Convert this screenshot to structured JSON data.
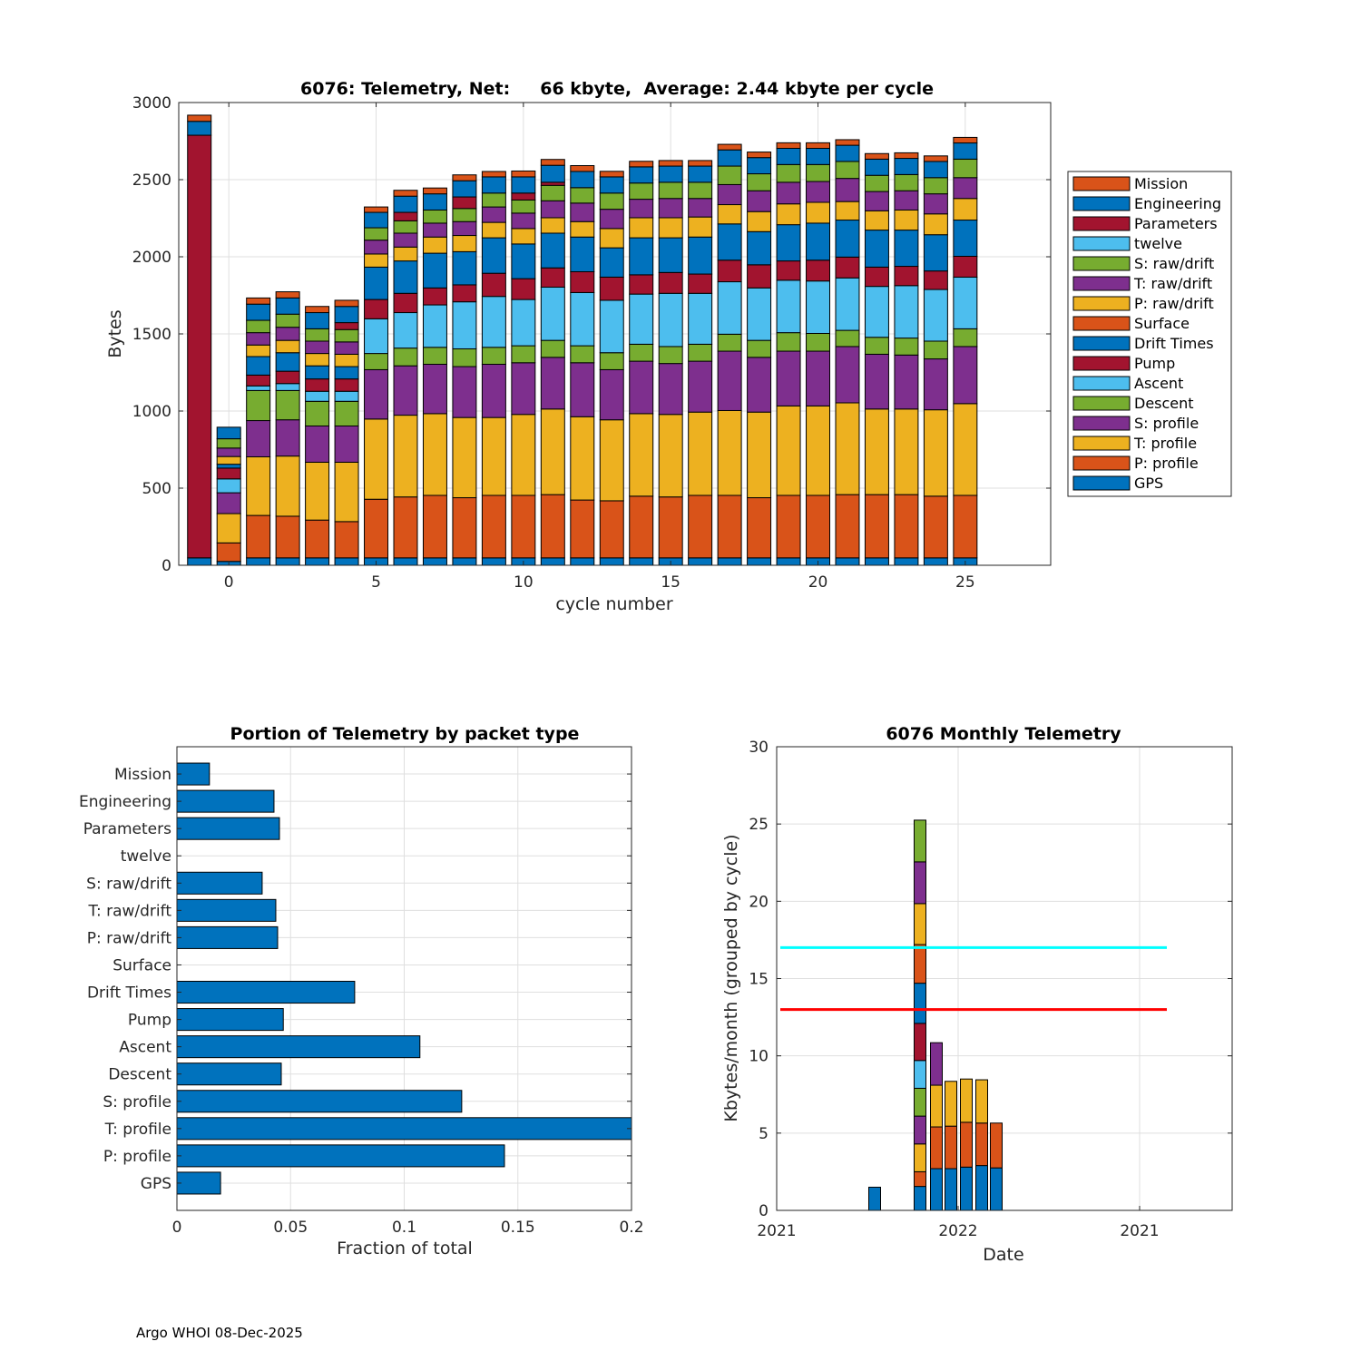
{
  "chart_data": [
    {
      "type": "bar",
      "stacked": true,
      "title": "6076: Telemetry, Net:     66 kbyte,  Average: 2.44 kbyte per cycle",
      "xlabel": "cycle number",
      "ylabel": "Bytes",
      "xlim": [
        -1.7,
        27.9
      ],
      "ylim": [
        0,
        3000
      ],
      "xticks": [
        0,
        5,
        10,
        15,
        20,
        25
      ],
      "yticks": [
        0,
        500,
        1000,
        1500,
        2000,
        2500,
        3000
      ],
      "grid": true,
      "legend_position": "outside-right",
      "categories": [
        -1,
        0,
        1,
        2,
        3,
        4,
        5,
        6,
        7,
        8,
        9,
        10,
        11,
        12,
        13,
        14,
        15,
        16,
        17,
        18,
        19,
        20,
        21,
        22,
        23,
        24,
        25
      ],
      "series": [
        {
          "name": "GPS",
          "color": "#0072BD",
          "values": [
            48,
            25,
            48,
            48,
            48,
            48,
            48,
            48,
            48,
            48,
            48,
            48,
            48,
            48,
            48,
            48,
            48,
            48,
            48,
            48,
            48,
            48,
            48,
            48,
            48,
            48,
            48
          ]
        },
        {
          "name": "P: profile",
          "color": "#D95319",
          "values": [
            0,
            120,
            275,
            270,
            245,
            235,
            380,
            395,
            405,
            390,
            405,
            405,
            410,
            375,
            370,
            400,
            395,
            405,
            405,
            390,
            405,
            405,
            410,
            410,
            410,
            400,
            405
          ]
        },
        {
          "name": "T: profile",
          "color": "#EDB120",
          "values": [
            0,
            190,
            380,
            390,
            375,
            385,
            520,
            530,
            530,
            520,
            505,
            525,
            555,
            540,
            525,
            535,
            535,
            540,
            550,
            555,
            580,
            580,
            595,
            555,
            555,
            560,
            595
          ]
        },
        {
          "name": "S: profile",
          "color": "#7E2F8E",
          "values": [
            0,
            135,
            235,
            235,
            235,
            235,
            320,
            320,
            320,
            330,
            345,
            335,
            335,
            350,
            325,
            340,
            330,
            330,
            385,
            355,
            355,
            355,
            365,
            355,
            350,
            330,
            370
          ]
        },
        {
          "name": "Descent",
          "color": "#77AC30",
          "values": [
            0,
            0,
            195,
            190,
            160,
            160,
            105,
            115,
            110,
            115,
            110,
            110,
            110,
            110,
            110,
            110,
            110,
            110,
            110,
            110,
            120,
            115,
            105,
            110,
            110,
            115,
            115
          ]
        },
        {
          "name": "Ascent",
          "color": "#4DBEEE",
          "values": [
            0,
            90,
            30,
            45,
            65,
            65,
            225,
            230,
            275,
            305,
            330,
            300,
            345,
            345,
            340,
            325,
            345,
            330,
            340,
            340,
            340,
            340,
            340,
            330,
            340,
            335,
            335
          ]
        },
        {
          "name": "Pump",
          "color": "#A2142F",
          "values": [
            0,
            70,
            70,
            80,
            80,
            80,
            125,
            125,
            110,
            110,
            150,
            135,
            125,
            135,
            150,
            125,
            135,
            125,
            140,
            150,
            125,
            135,
            135,
            125,
            125,
            120,
            135
          ]
        },
        {
          "name": "Drift Times",
          "color": "#0072BD",
          "values": [
            0,
            25,
            120,
            120,
            85,
            80,
            210,
            210,
            225,
            215,
            230,
            225,
            225,
            225,
            190,
            240,
            225,
            240,
            235,
            215,
            235,
            240,
            240,
            240,
            235,
            235,
            235
          ]
        },
        {
          "name": "Surface",
          "color": "#D95319",
          "values": [
            0,
            0,
            0,
            0,
            0,
            0,
            0,
            0,
            0,
            0,
            0,
            0,
            0,
            0,
            0,
            0,
            0,
            0,
            0,
            0,
            0,
            0,
            0,
            0,
            0,
            0,
            0
          ]
        },
        {
          "name": "P: raw/drift",
          "color": "#EDB120",
          "values": [
            0,
            50,
            75,
            80,
            80,
            80,
            85,
            90,
            105,
            105,
            100,
            100,
            100,
            100,
            125,
            130,
            130,
            130,
            125,
            130,
            135,
            135,
            120,
            125,
            130,
            135,
            140
          ]
        },
        {
          "name": "T: raw/drift",
          "color": "#7E2F8E",
          "values": [
            0,
            55,
            80,
            85,
            80,
            80,
            90,
            90,
            90,
            90,
            100,
            100,
            110,
            120,
            125,
            120,
            125,
            120,
            130,
            135,
            140,
            135,
            150,
            125,
            125,
            130,
            135
          ]
        },
        {
          "name": "S: raw/drift",
          "color": "#77AC30",
          "values": [
            0,
            60,
            80,
            85,
            80,
            80,
            80,
            80,
            85,
            85,
            90,
            85,
            100,
            100,
            105,
            105,
            105,
            105,
            120,
            110,
            115,
            110,
            110,
            105,
            105,
            105,
            120
          ]
        },
        {
          "name": "twelve",
          "color": "#4DBEEE",
          "values": [
            0,
            0,
            0,
            0,
            0,
            0,
            0,
            0,
            0,
            0,
            0,
            0,
            0,
            0,
            0,
            0,
            0,
            0,
            0,
            0,
            0,
            0,
            0,
            0,
            0,
            0,
            0
          ]
        },
        {
          "name": "Parameters",
          "color": "#A2142F",
          "values": [
            2740,
            0,
            0,
            0,
            0,
            45,
            0,
            55,
            0,
            75,
            0,
            45,
            20,
            0,
            0,
            0,
            0,
            0,
            0,
            0,
            0,
            0,
            0,
            0,
            0,
            0,
            0
          ]
        },
        {
          "name": "Engineering",
          "color": "#0072BD",
          "values": [
            90,
            75,
            105,
            105,
            105,
            105,
            100,
            105,
            105,
            105,
            105,
            105,
            110,
            105,
            105,
            105,
            105,
            105,
            105,
            105,
            105,
            105,
            105,
            105,
            105,
            105,
            105
          ]
        },
        {
          "name": "Mission",
          "color": "#D95319",
          "values": [
            40,
            0,
            40,
            40,
            40,
            40,
            35,
            38,
            38,
            38,
            35,
            38,
            38,
            38,
            36,
            36,
            36,
            36,
            36,
            36,
            36,
            36,
            36,
            36,
            36,
            36,
            36
          ]
        }
      ]
    },
    {
      "type": "bar",
      "orientation": "horizontal",
      "title": "Portion of Telemetry by packet type",
      "xlabel": "Fraction of total",
      "ylabel": "",
      "xlim": [
        0,
        0.2
      ],
      "xticks": [
        0,
        0.05,
        0.1,
        0.15,
        0.2
      ],
      "xtick_labels": [
        "0",
        "0.05",
        "0.1",
        "0.15",
        "0.2"
      ],
      "grid": true,
      "color": "#0072BD",
      "categories": [
        "Mission",
        "Engineering",
        "Parameters",
        "twelve",
        "S: raw/drift",
        "T: raw/drift",
        "P: raw/drift",
        "Surface",
        "Drift Times",
        "Pump",
        "Ascent",
        "Descent",
        "S: profile",
        "T: profile",
        "P: profile",
        "GPS"
      ],
      "values": [
        0.0143,
        0.0427,
        0.0451,
        0,
        0.0375,
        0.0435,
        0.0443,
        0,
        0.0782,
        0.0468,
        0.1069,
        0.0459,
        0.1253,
        0.2,
        0.1441,
        0.0192
      ]
    },
    {
      "type": "bar",
      "stacked": true,
      "title": "6076 Monthly Telemetry",
      "xlabel": "Date",
      "ylabel": "Kbytes/month (grouped by cycle)",
      "ylim": [
        0,
        30
      ],
      "yticks": [
        0,
        5,
        10,
        15,
        20,
        25,
        30
      ],
      "xtick_labels": [
        "2021",
        "2022",
        "2021"
      ],
      "grid": true,
      "reference_lines": [
        {
          "value": 17,
          "color": "#00FFFF"
        },
        {
          "value": 13,
          "color": "#FF0000"
        }
      ],
      "bars": [
        {
          "segments": [
            {
              "value": 1.5,
              "color": "#0072BD"
            }
          ]
        },
        {
          "segments": [
            {
              "value": 1.55,
              "color": "#0072BD"
            },
            {
              "value": 0.95,
              "color": "#D95319"
            },
            {
              "value": 1.8,
              "color": "#EDB120"
            },
            {
              "value": 1.8,
              "color": "#7E2F8E"
            },
            {
              "value": 1.8,
              "color": "#77AC30"
            },
            {
              "value": 1.8,
              "color": "#4DBEEE"
            },
            {
              "value": 2.4,
              "color": "#A2142F"
            },
            {
              "value": 2.6,
              "color": "#0072BD"
            },
            {
              "value": 2.5,
              "color": "#D95319"
            },
            {
              "value": 2.65,
              "color": "#EDB120"
            },
            {
              "value": 2.7,
              "color": "#7E2F8E"
            },
            {
              "value": 2.7,
              "color": "#77AC30"
            }
          ]
        },
        {
          "segments": [
            {
              "value": 2.7,
              "color": "#0072BD"
            },
            {
              "value": 2.7,
              "color": "#D95319"
            },
            {
              "value": 2.7,
              "color": "#EDB120"
            },
            {
              "value": 2.75,
              "color": "#7E2F8E"
            }
          ]
        },
        {
          "segments": [
            {
              "value": 2.7,
              "color": "#0072BD"
            },
            {
              "value": 2.75,
              "color": "#D95319"
            },
            {
              "value": 2.9,
              "color": "#EDB120"
            }
          ]
        },
        {
          "segments": [
            {
              "value": 2.8,
              "color": "#0072BD"
            },
            {
              "value": 2.9,
              "color": "#D95319"
            },
            {
              "value": 2.8,
              "color": "#EDB120"
            }
          ]
        },
        {
          "segments": [
            {
              "value": 2.9,
              "color": "#0072BD"
            },
            {
              "value": 2.75,
              "color": "#D95319"
            },
            {
              "value": 2.8,
              "color": "#EDB120"
            }
          ]
        },
        {
          "segments": [
            {
              "value": 2.75,
              "color": "#0072BD"
            },
            {
              "value": 2.9,
              "color": "#D95319"
            }
          ]
        }
      ]
    }
  ],
  "footer": "Argo WHOI 08-Dec-2025"
}
